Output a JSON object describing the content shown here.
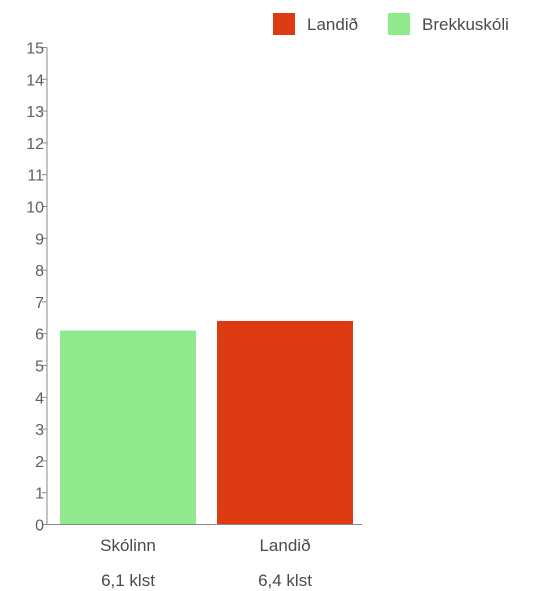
{
  "chart_data": {
    "type": "bar",
    "categories": [
      "Skólinn",
      "Landið"
    ],
    "values": [
      6.1,
      6.4
    ],
    "value_labels": [
      "6,1 klst",
      "6,4 klst"
    ],
    "bar_colors": [
      "#8eea8c",
      "#dd3a13"
    ],
    "ylim": [
      0,
      15
    ],
    "yticks": [
      0,
      1,
      2,
      3,
      4,
      5,
      6,
      7,
      8,
      9,
      10,
      11,
      12,
      13,
      14,
      15
    ],
    "grid": false,
    "legend": {
      "placement": "top-right",
      "items": [
        {
          "label": "Landið",
          "color": "#dd3a13"
        },
        {
          "label": "Brekkuskóli",
          "color": "#8eea8c"
        }
      ]
    }
  }
}
